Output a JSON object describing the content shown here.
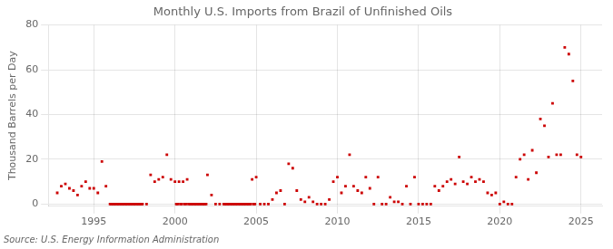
{
  "chart_data": {
    "type": "scatter",
    "title": "Monthly U.S. Imports from Brazil of Unfinished Oils",
    "ylabel": "Thousand Barrels per Day",
    "annotation": "Source: U.S. Energy Information Administration",
    "color": "#cc0000",
    "marker": "square",
    "grid": true,
    "xlim": [
      1992.2,
      2026.3
    ],
    "ylim": [
      -1,
      80
    ],
    "xticks": [
      1995,
      2000,
      2005,
      2010,
      2015,
      2020,
      2025
    ],
    "yticks": [
      0,
      20,
      40,
      60,
      80
    ],
    "x": [
      1992.75,
      1993.0,
      1993.25,
      1993.5,
      1993.75,
      1994.0,
      1994.25,
      1994.5,
      1994.75,
      1995.0,
      1995.25,
      1995.5,
      1995.75,
      1996.0,
      1996.08,
      1996.17,
      1996.25,
      1996.33,
      1996.42,
      1996.5,
      1996.58,
      1996.67,
      1996.75,
      1996.83,
      1996.92,
      1997.0,
      1997.08,
      1997.17,
      1997.25,
      1997.33,
      1997.42,
      1997.5,
      1997.58,
      1997.67,
      1997.75,
      1997.83,
      1997.92,
      1998.0,
      1998.25,
      1998.5,
      1998.75,
      1999.0,
      1999.25,
      1999.5,
      1999.75,
      2000.0,
      2000.08,
      2000.17,
      2000.25,
      2000.33,
      2000.42,
      2000.5,
      2000.58,
      2000.67,
      2000.75,
      2000.83,
      2000.92,
      2001.0,
      2001.08,
      2001.17,
      2001.25,
      2001.33,
      2001.42,
      2001.5,
      2001.58,
      2001.67,
      2001.75,
      2001.83,
      2001.92,
      2002.0,
      2002.25,
      2002.5,
      2002.75,
      2003.0,
      2003.08,
      2003.17,
      2003.25,
      2003.33,
      2003.42,
      2003.5,
      2003.58,
      2003.67,
      2003.75,
      2003.83,
      2003.92,
      2004.0,
      2004.08,
      2004.17,
      2004.25,
      2004.33,
      2004.42,
      2004.5,
      2004.58,
      2004.67,
      2004.75,
      2004.83,
      2004.92,
      2005.0,
      2005.25,
      2005.5,
      2005.75,
      2006.0,
      2006.25,
      2006.5,
      2006.75,
      2007.0,
      2007.25,
      2007.5,
      2007.75,
      2008.0,
      2008.25,
      2008.5,
      2008.75,
      2009.0,
      2009.25,
      2009.5,
      2009.75,
      2010.0,
      2010.25,
      2010.5,
      2010.75,
      2011.0,
      2011.25,
      2011.5,
      2011.75,
      2012.0,
      2012.25,
      2012.5,
      2012.75,
      2013.0,
      2013.25,
      2013.5,
      2013.75,
      2014.0,
      2014.25,
      2014.5,
      2014.75,
      2015.0,
      2015.25,
      2015.5,
      2015.75,
      2016.0,
      2016.25,
      2016.5,
      2016.75,
      2017.0,
      2017.25,
      2017.5,
      2017.75,
      2018.0,
      2018.25,
      2018.5,
      2018.75,
      2019.0,
      2019.25,
      2019.5,
      2019.75,
      2020.0,
      2020.25,
      2020.5,
      2020.75,
      2021.0,
      2021.25,
      2021.5,
      2021.75,
      2022.0,
      2022.25,
      2022.5,
      2022.75,
      2023.0,
      2023.25,
      2023.5,
      2023.75,
      2024.0,
      2024.25,
      2024.5,
      2024.75,
      2025.0
    ],
    "values": [
      5,
      8,
      9,
      7,
      6,
      4,
      8,
      10,
      7,
      7,
      5,
      19,
      8,
      0,
      0,
      0,
      0,
      0,
      0,
      0,
      0,
      0,
      0,
      0,
      0,
      0,
      0,
      0,
      0,
      0,
      0,
      0,
      0,
      0,
      0,
      0,
      0,
      0,
      0,
      13,
      10,
      11,
      12,
      22,
      11,
      10,
      0,
      0,
      10,
      0,
      0,
      10,
      0,
      0,
      11,
      0,
      0,
      0,
      0,
      0,
      0,
      0,
      0,
      0,
      0,
      0,
      0,
      0,
      0,
      13,
      4,
      0,
      0,
      0,
      0,
      0,
      0,
      0,
      0,
      0,
      0,
      0,
      0,
      0,
      0,
      0,
      0,
      0,
      0,
      0,
      0,
      0,
      0,
      0,
      11,
      0,
      0,
      12,
      0,
      0,
      0,
      2,
      5,
      6,
      0,
      18,
      16,
      6,
      2,
      1,
      3,
      1,
      0,
      0,
      0,
      2,
      10,
      12,
      5,
      8,
      22,
      8,
      6,
      5,
      12,
      7,
      0,
      12,
      0,
      0,
      3,
      1,
      1,
      0,
      8,
      0,
      12,
      0,
      0,
      0,
      0,
      8,
      6,
      8,
      10,
      11,
      9,
      21,
      10,
      9,
      12,
      10,
      11,
      10,
      5,
      4,
      5,
      0,
      1,
      0,
      0,
      12,
      20,
      22,
      11,
      24,
      14,
      38,
      35,
      21,
      45,
      22,
      22,
      70,
      67,
      55,
      22,
      21
    ]
  }
}
